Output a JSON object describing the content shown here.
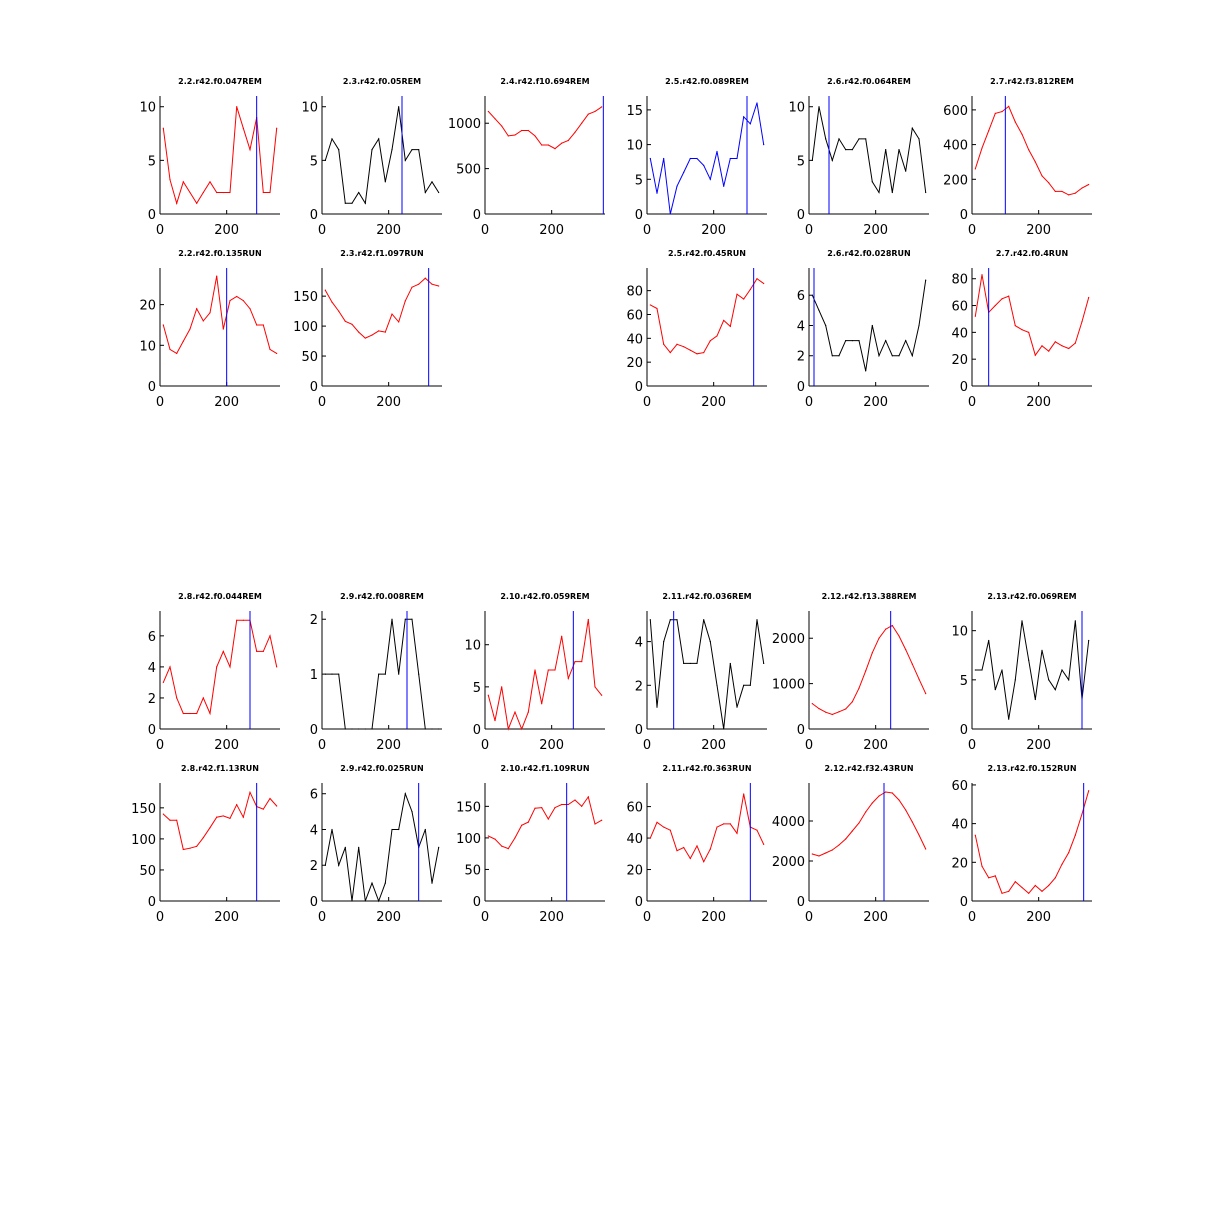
{
  "chart_data": [
    {
      "type": "line",
      "title": "2.2.r42.f0.047REM",
      "color": "#ff0000",
      "x": [
        10,
        30,
        50,
        70,
        90,
        110,
        130,
        150,
        170,
        190,
        210,
        230,
        250,
        270,
        290,
        310,
        330,
        350
      ],
      "y": [
        8,
        3.2,
        1,
        3,
        2,
        1,
        2,
        3,
        2,
        2,
        2,
        10,
        8,
        6,
        9,
        2,
        2,
        8
      ],
      "marker_x": 290,
      "xlim": [
        0,
        360
      ],
      "ylim": [
        0,
        11
      ],
      "xticks": [
        0,
        200
      ],
      "yticks": [
        0,
        5,
        10
      ]
    },
    {
      "type": "line",
      "title": "2.3.r42.f0.05REM",
      "color": "#000000",
      "x": [
        10,
        30,
        50,
        70,
        90,
        110,
        130,
        150,
        170,
        190,
        210,
        230,
        250,
        270,
        290,
        310,
        330,
        350
      ],
      "y": [
        5,
        7,
        6,
        1,
        1,
        2,
        1,
        6,
        7,
        3,
        6,
        10,
        5,
        6,
        6,
        2,
        3,
        2
      ],
      "marker_x": 240,
      "xlim": [
        0,
        360
      ],
      "ylim": [
        0,
        11
      ],
      "xticks": [
        0,
        200
      ],
      "yticks": [
        0,
        5,
        10
      ]
    },
    {
      "type": "line",
      "title": "2.4.r42.f10.694REM",
      "color": "#ff0000",
      "x": [
        10,
        30,
        50,
        70,
        90,
        110,
        130,
        150,
        170,
        190,
        210,
        230,
        250,
        270,
        290,
        310,
        330,
        350
      ],
      "y": [
        1130,
        1050,
        970,
        860,
        870,
        920,
        920,
        860,
        760,
        760,
        720,
        780,
        810,
        900,
        1000,
        1100,
        1130,
        1180
      ],
      "marker_x": 355,
      "xlim": [
        0,
        360
      ],
      "ylim": [
        0,
        1300
      ],
      "xticks": [
        0,
        200
      ],
      "yticks": [
        0,
        500,
        1000
      ]
    },
    {
      "type": "line",
      "title": "2.5.r42.f0.089REM",
      "color": "#0000ff",
      "x": [
        10,
        30,
        50,
        70,
        90,
        110,
        130,
        150,
        170,
        190,
        210,
        230,
        250,
        270,
        290,
        310,
        330,
        350
      ],
      "y": [
        8,
        3,
        8,
        0,
        4,
        6,
        8,
        8,
        7,
        5,
        9,
        4,
        8,
        8,
        14,
        13,
        16,
        10
      ],
      "marker_x": 300,
      "xlim": [
        0,
        360
      ],
      "ylim": [
        0,
        17
      ],
      "xticks": [
        0,
        200
      ],
      "yticks": [
        0,
        5,
        10,
        15
      ]
    },
    {
      "type": "line",
      "title": "2.6.r42.f0.064REM",
      "color": "#000000",
      "x": [
        10,
        30,
        50,
        70,
        90,
        110,
        130,
        150,
        170,
        190,
        210,
        230,
        250,
        270,
        290,
        310,
        330,
        350
      ],
      "y": [
        5,
        10,
        7,
        5,
        7,
        6,
        6,
        7,
        7,
        3,
        2,
        6,
        2,
        6,
        4,
        8,
        7,
        2
      ],
      "marker_x": 60,
      "xlim": [
        0,
        360
      ],
      "ylim": [
        0,
        11
      ],
      "xticks": [
        0,
        200
      ],
      "yticks": [
        0,
        5,
        10
      ]
    },
    {
      "type": "line",
      "title": "2.7.r42.f3.812REM",
      "color": "#ff0000",
      "x": [
        10,
        30,
        50,
        70,
        90,
        110,
        130,
        150,
        170,
        190,
        210,
        230,
        250,
        270,
        290,
        310,
        330,
        350
      ],
      "y": [
        260,
        380,
        480,
        580,
        590,
        620,
        530,
        460,
        370,
        300,
        220,
        180,
        130,
        130,
        110,
        120,
        150,
        170
      ],
      "marker_x": 100,
      "xlim": [
        0,
        360
      ],
      "ylim": [
        0,
        680
      ],
      "xticks": [
        0,
        200
      ],
      "yticks": [
        0,
        200,
        400,
        600
      ]
    },
    {
      "type": "line",
      "title": "2.2.r42.f0.135RUN",
      "color": "#ff0000",
      "x": [
        10,
        30,
        50,
        70,
        90,
        110,
        130,
        150,
        170,
        190,
        210,
        230,
        250,
        270,
        290,
        310,
        330,
        350
      ],
      "y": [
        15,
        9,
        8,
        11,
        14,
        19,
        16,
        18,
        27,
        14,
        21,
        22,
        21,
        19,
        15,
        15,
        9,
        8
      ],
      "marker_x": 200,
      "xlim": [
        0,
        360
      ],
      "ylim": [
        0,
        29
      ],
      "xticks": [
        0,
        200
      ],
      "yticks": [
        0,
        10,
        20
      ]
    },
    {
      "type": "line",
      "title": "2.3.r42.f1.097RUN",
      "color": "#ff0000",
      "x": [
        10,
        30,
        50,
        70,
        90,
        110,
        130,
        150,
        170,
        190,
        210,
        230,
        250,
        270,
        290,
        310,
        330,
        350
      ],
      "y": [
        160,
        140,
        125,
        108,
        103,
        90,
        80,
        85,
        92,
        90,
        120,
        107,
        142,
        165,
        170,
        180,
        170,
        167
      ],
      "marker_x": 320,
      "xlim": [
        0,
        360
      ],
      "ylim": [
        0,
        197
      ],
      "xticks": [
        0,
        200
      ],
      "yticks": [
        0,
        50,
        100,
        150
      ]
    },
    {
      "type": "line",
      "title": "2.5.r42.f0.45RUN",
      "color": "#ff0000",
      "x": [
        10,
        30,
        50,
        70,
        90,
        110,
        130,
        150,
        170,
        190,
        210,
        230,
        250,
        270,
        290,
        310,
        330,
        350
      ],
      "y": [
        68,
        65,
        35,
        28,
        35,
        33,
        30,
        27,
        28,
        38,
        42,
        55,
        50,
        77,
        73,
        81,
        90,
        86
      ],
      "marker_x": 320,
      "xlim": [
        0,
        360
      ],
      "ylim": [
        0,
        99
      ],
      "xticks": [
        0,
        200
      ],
      "yticks": [
        0,
        20,
        40,
        60,
        80
      ]
    },
    {
      "type": "line",
      "title": "2.6.r42.f0.028RUN",
      "color": "#000000",
      "x": [
        10,
        30,
        50,
        70,
        90,
        110,
        130,
        150,
        170,
        190,
        210,
        230,
        250,
        270,
        290,
        310,
        330,
        350
      ],
      "y": [
        6,
        5,
        4,
        2,
        2,
        3,
        3,
        3,
        1,
        4,
        2,
        3,
        2,
        2,
        3,
        2,
        4,
        7
      ],
      "marker_x": 15,
      "xlim": [
        0,
        360
      ],
      "ylim": [
        0,
        7.8
      ],
      "xticks": [
        0,
        200
      ],
      "yticks": [
        0,
        2,
        4,
        6
      ]
    },
    {
      "type": "line",
      "title": "2.7.r42.f0.4RUN",
      "color": "#ff0000",
      "x": [
        10,
        30,
        50,
        70,
        90,
        110,
        130,
        150,
        170,
        190,
        210,
        230,
        250,
        270,
        290,
        310,
        330,
        350
      ],
      "y": [
        52,
        83,
        55,
        60,
        65,
        67,
        45,
        42,
        40,
        23,
        30,
        26,
        33,
        30,
        28,
        32,
        48,
        66
      ],
      "marker_x": 50,
      "xlim": [
        0,
        360
      ],
      "ylim": [
        0,
        88
      ],
      "xticks": [
        0,
        200
      ],
      "yticks": [
        0,
        20,
        40,
        60,
        80
      ]
    },
    {
      "type": "line",
      "title": "2.8.r42.f0.044REM",
      "color": "#ff0000",
      "x": [
        10,
        30,
        50,
        70,
        90,
        110,
        130,
        150,
        170,
        190,
        210,
        230,
        250,
        270,
        290,
        310,
        330,
        350
      ],
      "y": [
        3,
        4,
        2,
        1,
        1,
        1,
        2,
        1,
        4,
        5,
        4,
        7,
        7,
        7,
        5,
        5,
        6,
        4
      ],
      "marker_x": 270,
      "xlim": [
        0,
        360
      ],
      "ylim": [
        0,
        7.6
      ],
      "xticks": [
        0,
        200
      ],
      "yticks": [
        0,
        2,
        4,
        6
      ]
    },
    {
      "type": "line",
      "title": "2.9.r42.f0.008REM",
      "color": "#000000",
      "x": [
        10,
        30,
        50,
        70,
        90,
        110,
        130,
        150,
        170,
        190,
        210,
        230,
        250,
        270,
        290,
        310,
        330,
        350
      ],
      "y": [
        1,
        1,
        1,
        0,
        0,
        0,
        0,
        0,
        1,
        1,
        2,
        1,
        2,
        2,
        1,
        0,
        0,
        0
      ],
      "marker_x": 255,
      "xlim": [
        0,
        360
      ],
      "ylim": [
        0,
        2.15
      ],
      "xticks": [
        0,
        200
      ],
      "yticks": [
        0,
        1,
        2
      ]
    },
    {
      "type": "line",
      "title": "2.10.r42.f0.059REM",
      "color": "#ff0000",
      "x": [
        10,
        30,
        50,
        70,
        90,
        110,
        130,
        150,
        170,
        190,
        210,
        230,
        250,
        270,
        290,
        310,
        330,
        350
      ],
      "y": [
        4,
        1,
        5,
        0,
        2,
        0,
        2,
        7,
        3,
        7,
        7,
        11,
        6,
        8,
        8,
        13,
        5,
        4
      ],
      "marker_x": 265,
      "xlim": [
        0,
        360
      ],
      "ylim": [
        0,
        14
      ],
      "xticks": [
        0,
        200
      ],
      "yticks": [
        0,
        5,
        10
      ]
    },
    {
      "type": "line",
      "title": "2.11.r42.f0.036REM",
      "color": "#000000",
      "x": [
        10,
        30,
        50,
        70,
        90,
        110,
        130,
        150,
        170,
        190,
        210,
        230,
        250,
        270,
        290,
        310,
        330,
        350
      ],
      "y": [
        5,
        1,
        4,
        5,
        5,
        3,
        3,
        3,
        5,
        4,
        2,
        0,
        3,
        1,
        2,
        2,
        5,
        3
      ],
      "marker_x": 80,
      "xlim": [
        0,
        360
      ],
      "ylim": [
        0,
        5.4
      ],
      "xticks": [
        0,
        200
      ],
      "yticks": [
        0,
        2,
        4
      ]
    },
    {
      "type": "line",
      "title": "2.12.r42.f13.388REM",
      "color": "#ff0000",
      "x": [
        10,
        30,
        50,
        70,
        90,
        110,
        130,
        150,
        170,
        190,
        210,
        230,
        250,
        270,
        290,
        310,
        330,
        350
      ],
      "y": [
        560,
        450,
        370,
        320,
        380,
        440,
        600,
        900,
        1280,
        1680,
        2000,
        2200,
        2280,
        2050,
        1750,
        1430,
        1100,
        780
      ],
      "marker_x": 245,
      "xlim": [
        0,
        360
      ],
      "ylim": [
        0,
        2600
      ],
      "xticks": [
        0,
        200
      ],
      "yticks": [
        0,
        1000,
        2000
      ]
    },
    {
      "type": "line",
      "title": "2.13.r42.f0.069REM",
      "color": "#000000",
      "x": [
        10,
        30,
        50,
        70,
        90,
        110,
        130,
        150,
        170,
        190,
        210,
        230,
        250,
        270,
        290,
        310,
        330,
        350
      ],
      "y": [
        6,
        6,
        9,
        4,
        6,
        1,
        5,
        11,
        7,
        3,
        8,
        5,
        4,
        6,
        5,
        11,
        3,
        9
      ],
      "marker_x": 330,
      "xlim": [
        0,
        360
      ],
      "ylim": [
        0,
        12
      ],
      "xticks": [
        0,
        200
      ],
      "yticks": [
        0,
        5,
        10
      ]
    },
    {
      "type": "line",
      "title": "2.8.r42.f1.13RUN",
      "color": "#ff0000",
      "x": [
        10,
        30,
        50,
        70,
        90,
        110,
        130,
        150,
        170,
        190,
        210,
        230,
        250,
        270,
        290,
        310,
        330,
        350
      ],
      "y": [
        140,
        130,
        130,
        83,
        85,
        88,
        102,
        118,
        135,
        137,
        133,
        155,
        135,
        175,
        152,
        148,
        165,
        153
      ],
      "marker_x": 290,
      "xlim": [
        0,
        360
      ],
      "ylim": [
        0,
        190
      ],
      "xticks": [
        0,
        200
      ],
      "yticks": [
        0,
        50,
        100,
        150
      ]
    },
    {
      "type": "line",
      "title": "2.9.r42.f0.025RUN",
      "color": "#000000",
      "x": [
        10,
        30,
        50,
        70,
        90,
        110,
        130,
        150,
        170,
        190,
        210,
        230,
        250,
        270,
        290,
        310,
        330,
        350
      ],
      "y": [
        2,
        4,
        2,
        3,
        0,
        3,
        0,
        1,
        0,
        1,
        4,
        4,
        6,
        5,
        3,
        4,
        1,
        3
      ],
      "marker_x": 290,
      "xlim": [
        0,
        360
      ],
      "ylim": [
        0,
        6.6
      ],
      "xticks": [
        0,
        200
      ],
      "yticks": [
        0,
        2,
        4,
        6
      ]
    },
    {
      "type": "line",
      "title": "2.10.r42.f1.109RUN",
      "color": "#ff0000",
      "x": [
        10,
        30,
        50,
        70,
        90,
        110,
        130,
        150,
        170,
        190,
        210,
        230,
        250,
        270,
        290,
        310,
        330,
        350
      ],
      "y": [
        103,
        98,
        87,
        83,
        100,
        120,
        125,
        147,
        148,
        130,
        148,
        153,
        153,
        160,
        150,
        165,
        122,
        128
      ],
      "marker_x": 245,
      "xlim": [
        0,
        360
      ],
      "ylim": [
        0,
        187
      ],
      "xticks": [
        0,
        200
      ],
      "yticks": [
        0,
        50,
        100,
        150
      ]
    },
    {
      "type": "line",
      "title": "2.11.r42.f0.363RUN",
      "color": "#ff0000",
      "x": [
        10,
        30,
        50,
        70,
        90,
        110,
        130,
        150,
        170,
        190,
        210,
        230,
        250,
        270,
        290,
        310,
        330,
        350
      ],
      "y": [
        40,
        50,
        47,
        45,
        32,
        34,
        27,
        35,
        25,
        33,
        47,
        49,
        49,
        43,
        68,
        47,
        45,
        36
      ],
      "marker_x": 310,
      "xlim": [
        0,
        360
      ],
      "ylim": [
        0,
        75
      ],
      "xticks": [
        0,
        200
      ],
      "yticks": [
        0,
        20,
        40,
        60
      ]
    },
    {
      "type": "line",
      "title": "2.12.r42.f32.43RUN",
      "color": "#ff0000",
      "x": [
        10,
        30,
        50,
        70,
        90,
        110,
        130,
        150,
        170,
        190,
        210,
        230,
        250,
        270,
        290,
        310,
        330,
        350
      ],
      "y": [
        2350,
        2250,
        2400,
        2550,
        2800,
        3100,
        3500,
        3900,
        4450,
        4900,
        5250,
        5450,
        5400,
        5050,
        4550,
        3950,
        3300,
        2600
      ],
      "marker_x": 225,
      "xlim": [
        0,
        360
      ],
      "ylim": [
        0,
        5900
      ],
      "xticks": [
        0,
        200
      ],
      "yticks": [
        0,
        2000,
        4000
      ]
    },
    {
      "type": "line",
      "title": "2.13.r42.f0.152RUN",
      "color": "#ff0000",
      "x": [
        10,
        30,
        50,
        70,
        90,
        110,
        130,
        150,
        170,
        190,
        210,
        230,
        250,
        270,
        290,
        310,
        330,
        350
      ],
      "y": [
        34,
        18,
        12,
        13,
        4,
        5,
        10,
        7,
        4,
        8,
        5,
        8,
        12,
        19,
        25,
        34,
        45,
        57
      ],
      "marker_x": 335,
      "xlim": [
        0,
        360
      ],
      "ylim": [
        0,
        61
      ],
      "xticks": [
        0,
        200
      ],
      "yticks": [
        0,
        20,
        40,
        60
      ]
    }
  ]
}
